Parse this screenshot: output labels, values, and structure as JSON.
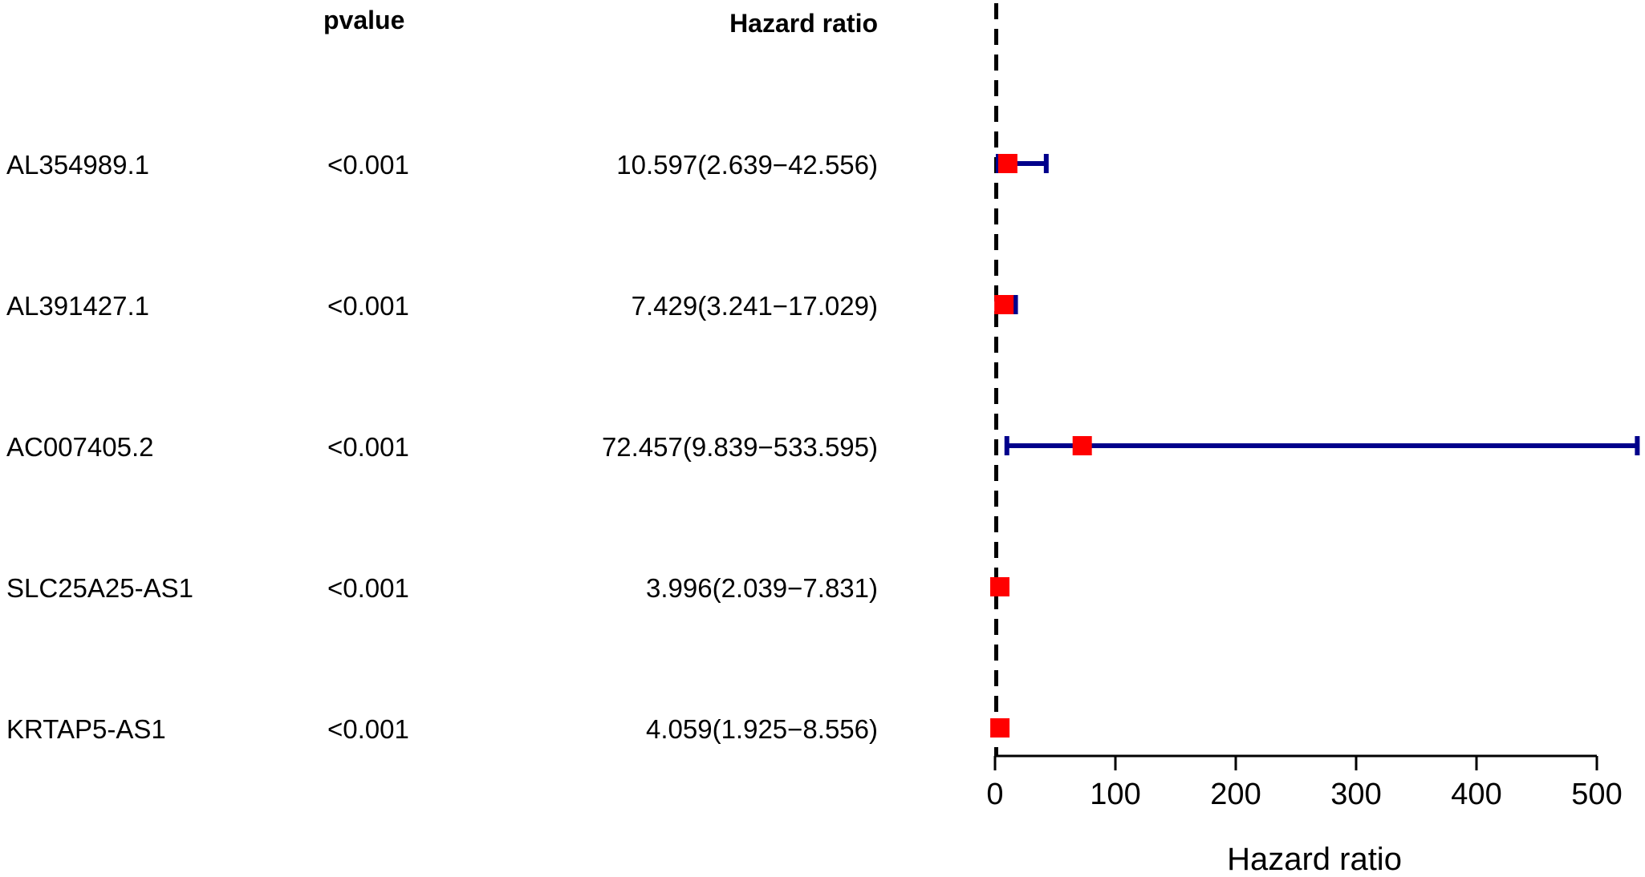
{
  "chart_data": {
    "type": "forest",
    "columns": {
      "pvalue": "pvalue",
      "hazard_ratio": "Hazard ratio"
    },
    "rows": [
      {
        "gene": "AL354989.1",
        "pvalue": "<0.001",
        "hr_text": "10.597(2.639−42.556)",
        "hr": 10.597,
        "lower": 2.639,
        "upper": 42.556
      },
      {
        "gene": "AL391427.1",
        "pvalue": "<0.001",
        "hr_text": "7.429(3.241−17.029)",
        "hr": 7.429,
        "lower": 3.241,
        "upper": 17.029
      },
      {
        "gene": "AC007405.2",
        "pvalue": "<0.001",
        "hr_text": "72.457(9.839−533.595)",
        "hr": 72.457,
        "lower": 9.839,
        "upper": 533.595
      },
      {
        "gene": "SLC25A25-AS1",
        "pvalue": "<0.001",
        "hr_text": "3.996(2.039−7.831)",
        "hr": 3.996,
        "lower": 2.039,
        "upper": 7.831
      },
      {
        "gene": "KRTAP5-AS1",
        "pvalue": "<0.001",
        "hr_text": "4.059(1.925−8.556)",
        "hr": 4.059,
        "lower": 1.925,
        "upper": 8.556
      }
    ],
    "reference_line": 1,
    "xlim": [
      0,
      535
    ],
    "xticks": [
      0,
      100,
      200,
      300,
      400,
      500
    ],
    "xlabel": "Hazard ratio",
    "colors": {
      "point": "#ff0000",
      "ci": "#00008b",
      "reference": "#000000",
      "axis": "#000000"
    }
  }
}
